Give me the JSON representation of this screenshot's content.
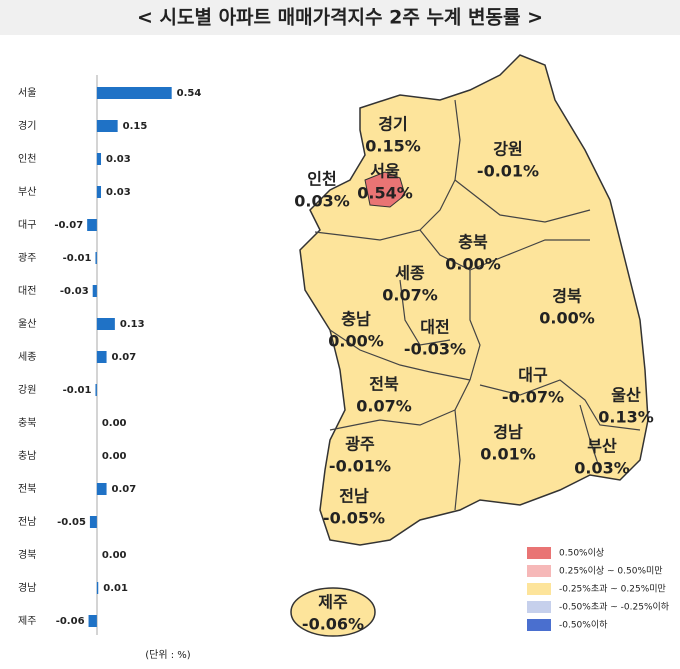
{
  "chart_data": {
    "type": "bar",
    "orientation": "horizontal",
    "title": "< 시도별 아파트 매매가격지수 2주 누계 변동률 >",
    "unit_note": "(단위 : %)",
    "categories": [
      "서울",
      "경기",
      "인천",
      "부산",
      "대구",
      "광주",
      "대전",
      "울산",
      "세종",
      "강원",
      "충북",
      "충남",
      "전북",
      "전남",
      "경북",
      "경남",
      "제주"
    ],
    "values": [
      0.54,
      0.15,
      0.03,
      0.03,
      -0.07,
      -0.01,
      -0.03,
      0.13,
      0.07,
      -0.01,
      0.0,
      0.0,
      0.07,
      -0.05,
      0.0,
      0.01,
      -0.06
    ],
    "value_labels": [
      "0.54",
      "0.15",
      "0.03",
      "0.03",
      "-0.07",
      "-0.01",
      "-0.03",
      "0.13",
      "0.07",
      "-0.01",
      "0.00",
      "0.00",
      "0.07",
      "-0.05",
      "0.00",
      "0.01",
      "-0.06"
    ],
    "color": "#1f72c6",
    "xlim": [
      -0.1,
      0.6
    ]
  },
  "map": {
    "regions": [
      {
        "name": "경기",
        "value_label": "0.15%"
      },
      {
        "name": "서울",
        "value_label": "0.54%"
      },
      {
        "name": "인천",
        "value_label": "0.03%"
      },
      {
        "name": "강원",
        "value_label": "-0.01%"
      },
      {
        "name": "충북",
        "value_label": "0.00%"
      },
      {
        "name": "세종",
        "value_label": "0.07%"
      },
      {
        "name": "충남",
        "value_label": "0.00%"
      },
      {
        "name": "대전",
        "value_label": "-0.03%"
      },
      {
        "name": "경북",
        "value_label": "0.00%"
      },
      {
        "name": "대구",
        "value_label": "-0.07%"
      },
      {
        "name": "울산",
        "value_label": "0.13%"
      },
      {
        "name": "전북",
        "value_label": "0.07%"
      },
      {
        "name": "경남",
        "value_label": "0.01%"
      },
      {
        "name": "부산",
        "value_label": "0.03%"
      },
      {
        "name": "광주",
        "value_label": "-0.01%"
      },
      {
        "name": "전남",
        "value_label": "-0.05%"
      },
      {
        "name": "제주",
        "value_label": "-0.06%"
      }
    ],
    "legend": [
      {
        "label": "0.50%이상",
        "color": "#e97474"
      },
      {
        "label": "0.25%이상 ~ 0.50%미만",
        "color": "#f6b8b8"
      },
      {
        "label": "-0.25%초과 ~ 0.25%미만",
        "color": "#fde49b"
      },
      {
        "label": "-0.50%초과 ~ -0.25%이하",
        "color": "#c6d0ec"
      },
      {
        "label": "-0.50%이하",
        "color": "#4a6fcf"
      }
    ]
  }
}
